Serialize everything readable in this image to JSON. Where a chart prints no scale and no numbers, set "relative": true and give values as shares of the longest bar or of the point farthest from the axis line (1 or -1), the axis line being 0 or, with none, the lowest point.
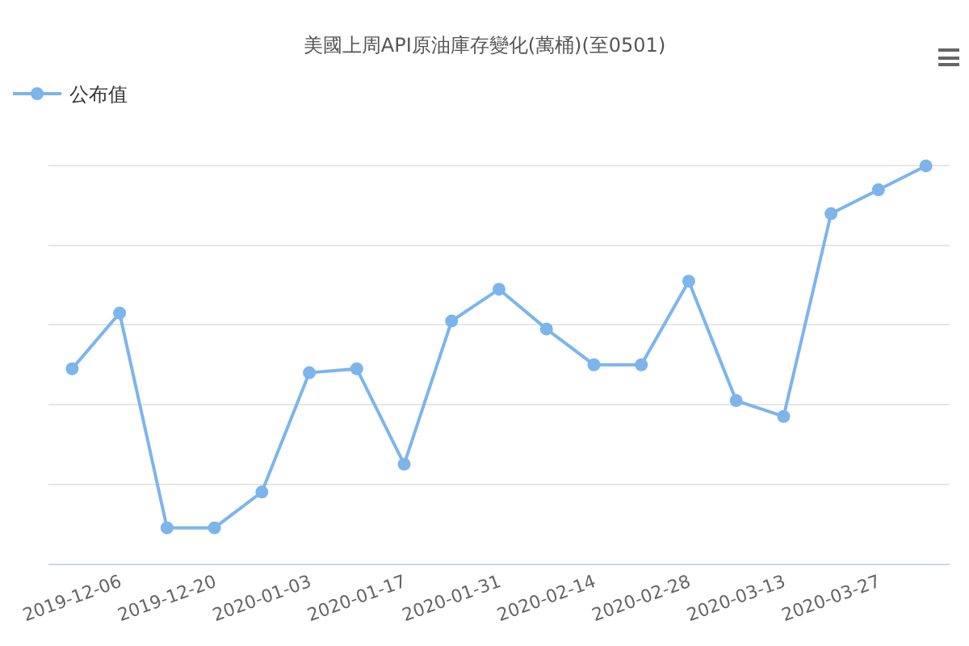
{
  "chart_data": {
    "type": "line",
    "title": "美國上周API原油庫存變化(萬桶)(至0501)",
    "categories": [
      null,
      "2019-12-06",
      null,
      "2019-12-20",
      null,
      "2020-01-03",
      null,
      "2020-01-17",
      null,
      "2020-01-31",
      null,
      "2020-02-14",
      null,
      "2020-02-28",
      null,
      "2020-03-13",
      null,
      "2020-03-27",
      null
    ],
    "series": [
      {
        "name": "公布值",
        "color": "#7cb5ec",
        "values": [
          0.49,
          0.63,
          0.09,
          0.09,
          0.18,
          0.48,
          0.49,
          0.25,
          0.61,
          0.69,
          0.59,
          0.5,
          0.5,
          0.71,
          0.41,
          0.37,
          0.88,
          0.94,
          1
        ]
      }
    ],
    "relative": true,
    "grid": "y",
    "legend": "top left",
    "marker": "circle"
  }
}
